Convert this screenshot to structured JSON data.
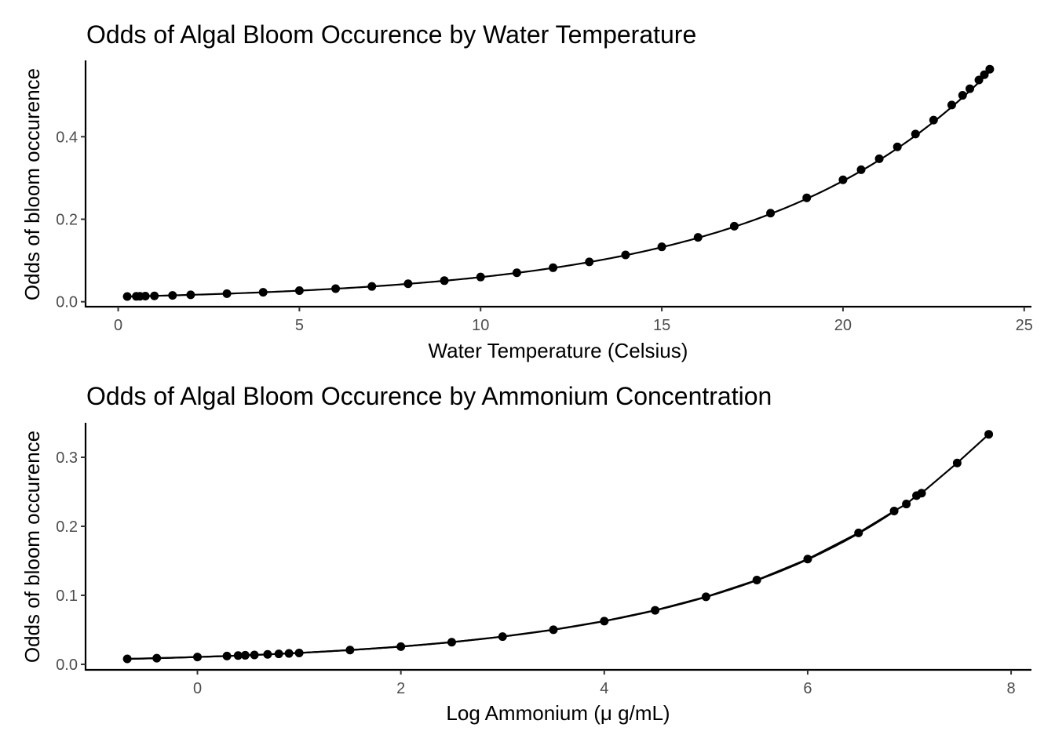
{
  "chart_data": [
    {
      "type": "scatter",
      "title": "Odds of Algal Bloom Occurence by Water Temperature",
      "xlabel": "Water Temperature (Celsius)",
      "ylabel": "Odds of bloom occurence",
      "xlim": [
        -0.9,
        25.2
      ],
      "ylim": [
        -0.012,
        0.585
      ],
      "xticks": [
        0,
        5,
        10,
        15,
        20,
        25
      ],
      "yticks": [
        0.0,
        0.2,
        0.4
      ],
      "xtick_labels": [
        "0",
        "5",
        "10",
        "15",
        "20",
        "25"
      ],
      "ytick_labels": [
        "0.0",
        "0.2",
        "0.4"
      ],
      "curve": {
        "model": "exponential",
        "a": 0.01213,
        "b": 0.1592,
        "x_range": [
          0.25,
          24.05
        ]
      },
      "series": [
        {
          "x": [
            0.25,
            0.5,
            0.6,
            0.75,
            1.0,
            1.5,
            2.0,
            3.0,
            4.0,
            5.0,
            6.0,
            7.0,
            8.0,
            9.0,
            10.0,
            11.0,
            12.0,
            13.0,
            14.0,
            15.0,
            16.0,
            17.0,
            18.0,
            19.0,
            20.0,
            20.5,
            21.0,
            21.5,
            22.0,
            22.5,
            23.0,
            23.3,
            23.5,
            23.75,
            23.9,
            24.05
          ],
          "y": [
            0.0127,
            0.0131,
            0.0133,
            0.0136,
            0.0142,
            0.0154,
            0.0167,
            0.0196,
            0.023,
            0.027,
            0.0317,
            0.0371,
            0.0436,
            0.0511,
            0.0599,
            0.0703,
            0.0825,
            0.0967,
            0.1134,
            0.1331,
            0.1561,
            0.1831,
            0.2148,
            0.2519,
            0.2955,
            0.3201,
            0.3466,
            0.3753,
            0.4065,
            0.4402,
            0.4768,
            0.5003,
            0.5164,
            0.5374,
            0.5503,
            0.5637
          ]
        }
      ]
    },
    {
      "type": "line",
      "title": "Odds of Algal Bloom Occurence by Ammonium Concentration",
      "xlabel": "Log Ammonium (μ g/mL)",
      "ylabel": "Odds of bloom occurence",
      "xlim": [
        -1.1,
        8.2
      ],
      "ylim": [
        -0.008,
        0.35
      ],
      "xticks": [
        0,
        2,
        4,
        6,
        8
      ],
      "yticks": [
        0.0,
        0.1,
        0.2,
        0.3
      ],
      "xtick_labels": [
        "0",
        "2",
        "4",
        "6",
        "8"
      ],
      "ytick_labels": [
        "0.0",
        "0.1",
        "0.2",
        "0.3"
      ],
      "curve": {
        "model": "exponential",
        "a": 0.01064,
        "b": 0.4432,
        "x_range": [
          -0.69,
          6.85
        ]
      },
      "series": [
        {
          "x": [
            -0.69,
            -0.4,
            0.0,
            0.29,
            0.4,
            0.47,
            0.56,
            0.69,
            0.8,
            0.9,
            1.0,
            1.5,
            2.0,
            2.5,
            3.0,
            3.5,
            4.0,
            4.5,
            5.0,
            5.5,
            6.0,
            6.5,
            6.85,
            6.97,
            7.07,
            7.12,
            7.47,
            7.78
          ],
          "y": [
            0.0079,
            0.0089,
            0.0106,
            0.012,
            0.0127,
            0.0131,
            0.0136,
            0.0144,
            0.0151,
            0.0158,
            0.0165,
            0.0207,
            0.0257,
            0.0321,
            0.0402,
            0.0501,
            0.0626,
            0.0783,
            0.0978,
            0.1221,
            0.1525,
            0.1905,
            0.2221,
            0.2323,
            0.2444,
            0.248,
            0.2918,
            0.3333
          ]
        }
      ]
    }
  ]
}
